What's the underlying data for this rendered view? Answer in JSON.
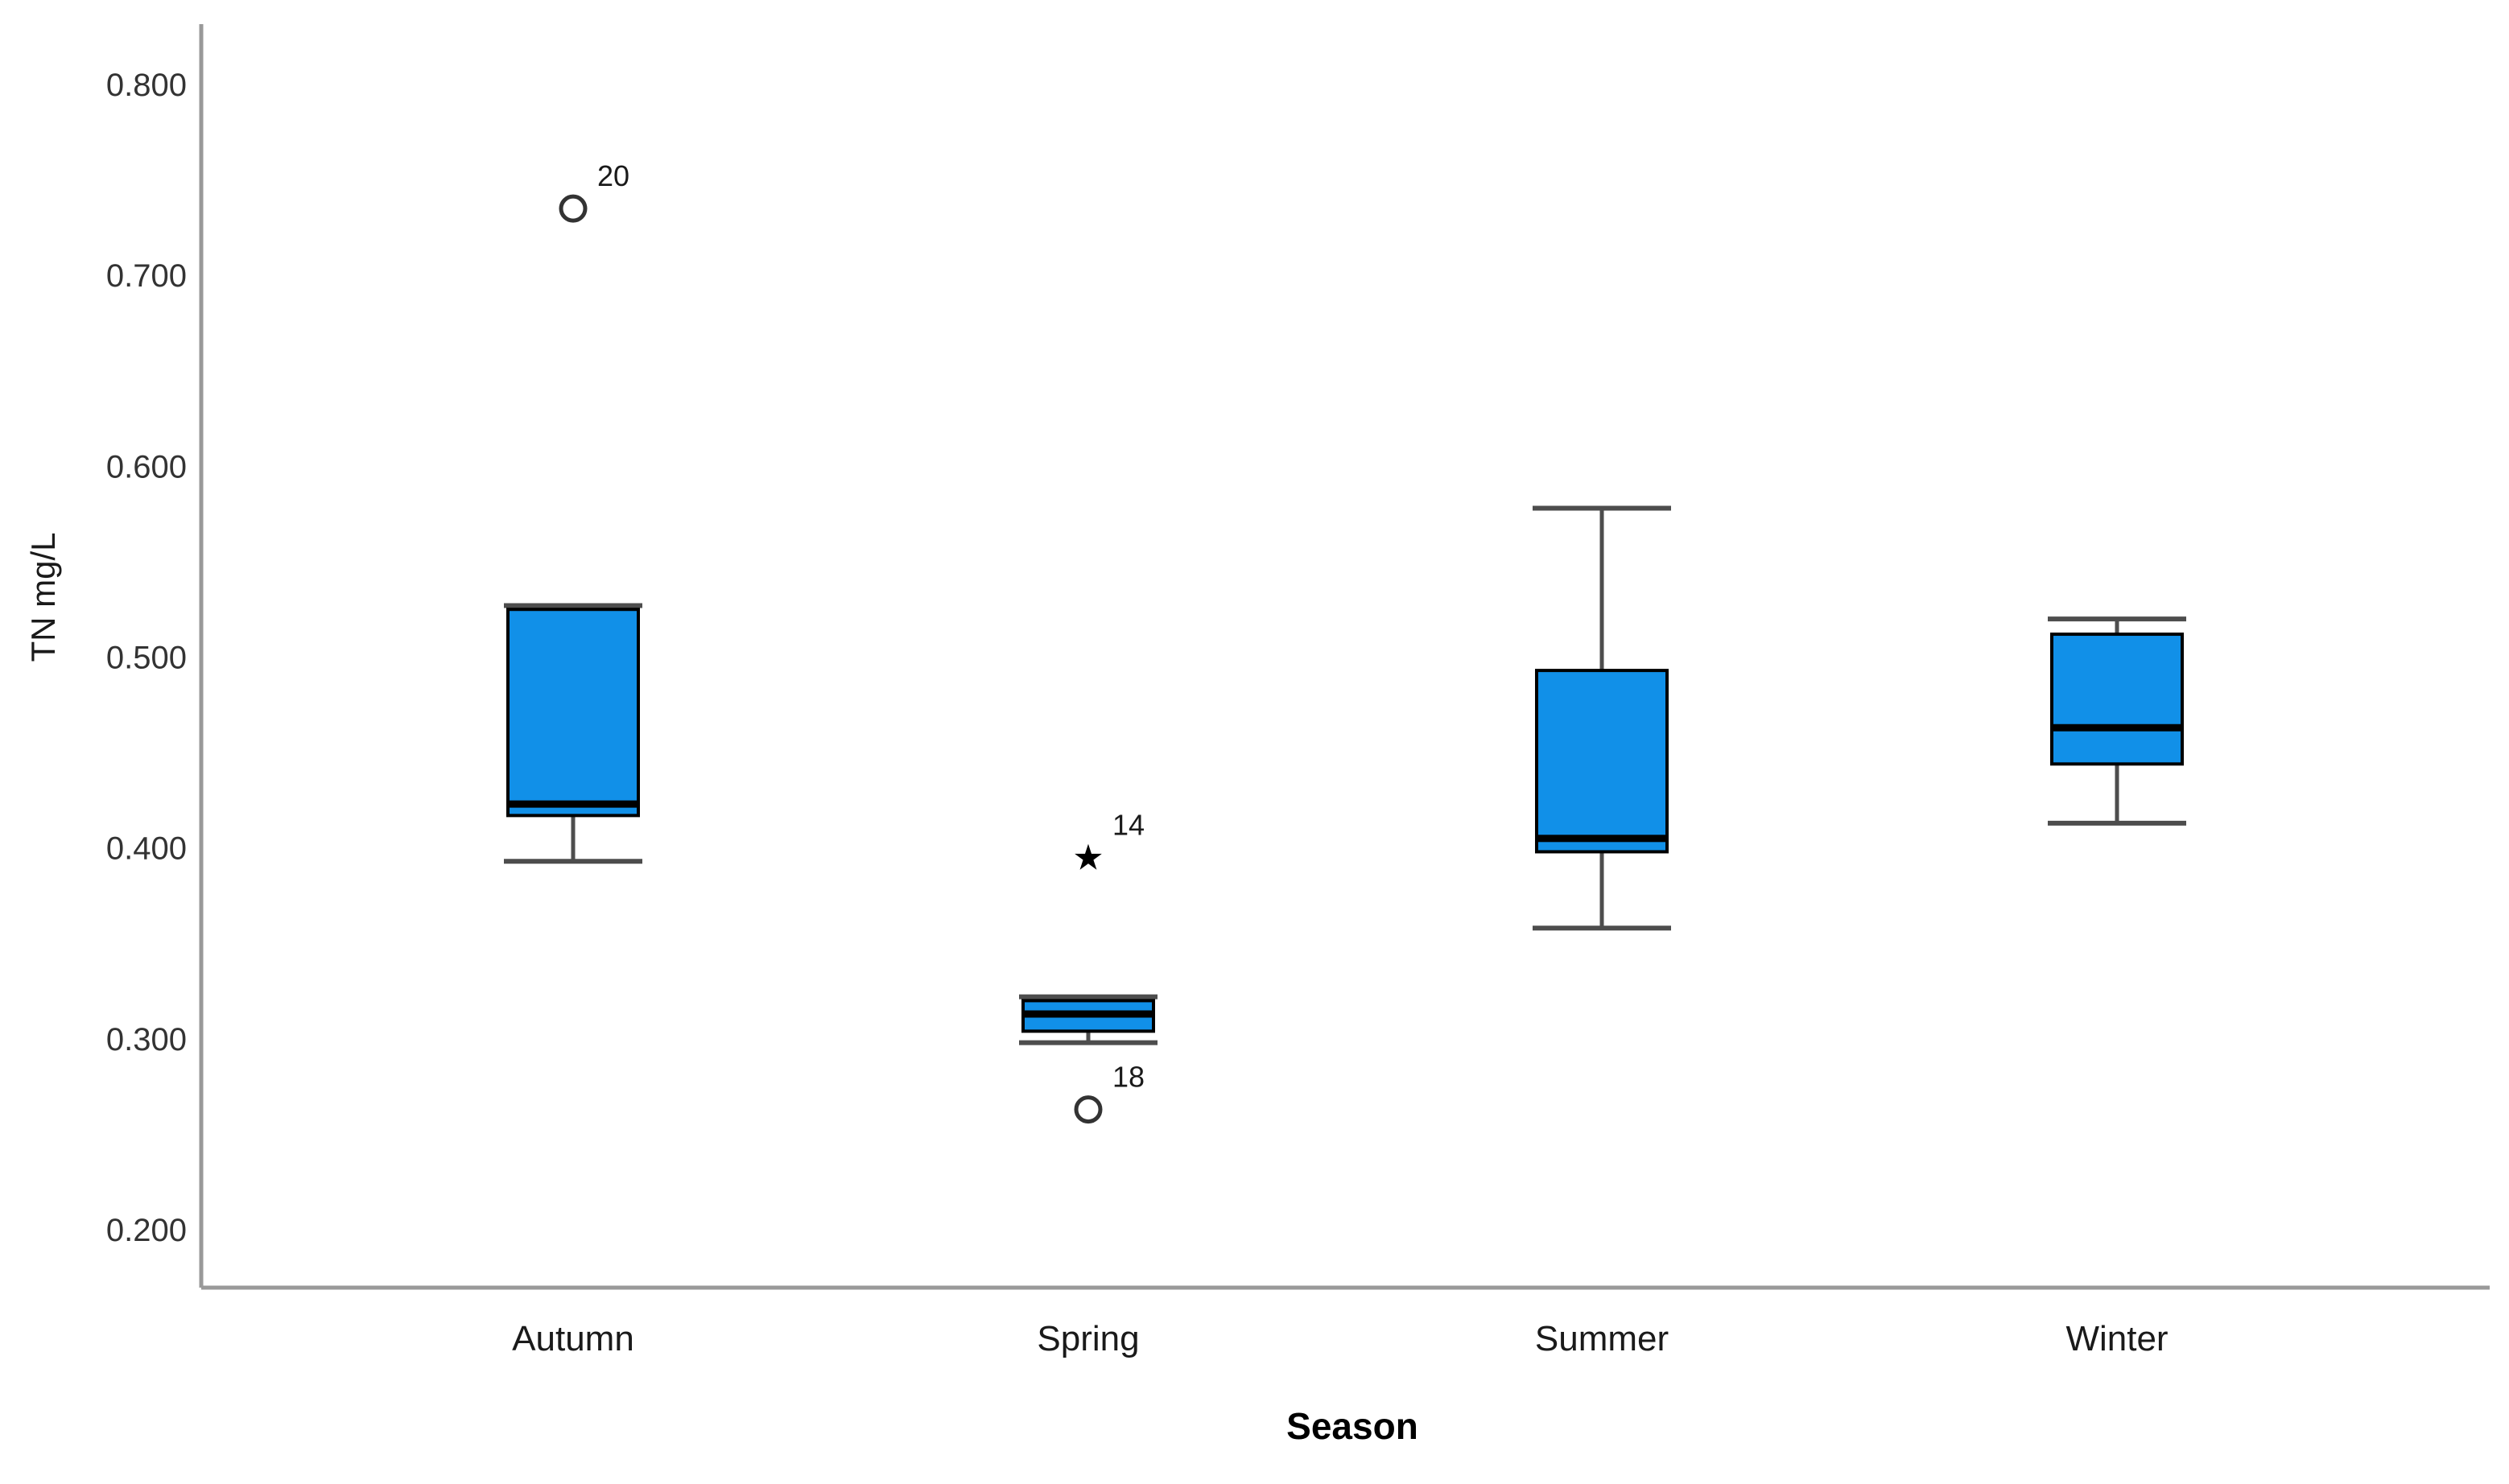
{
  "chart_data": {
    "type": "boxplot",
    "title": "",
    "xlabel": "Season",
    "ylabel": "TN  mg/L",
    "categories": [
      "Autumn",
      "Spring",
      "Summer",
      "Winter"
    ],
    "y_ticks": [
      "0.800",
      "0.700",
      "0.600",
      "0.500",
      "0.400",
      "0.300",
      "0.200"
    ],
    "y_tick_values": [
      0.8,
      0.7,
      0.6,
      0.5,
      0.4,
      0.3,
      0.2
    ],
    "ylim_visible": [
      0.17,
      0.832
    ],
    "grid": "off",
    "legend": "none",
    "series": [
      {
        "name": "Autumn",
        "q1": 0.417,
        "median": 0.423,
        "q3": 0.525,
        "whisker_low": 0.393,
        "whisker_high": 0.527,
        "outliers": [
          {
            "value": 0.735,
            "label": "20",
            "marker": "circle"
          }
        ]
      },
      {
        "name": "Spring",
        "q1": 0.304,
        "median": 0.313,
        "q3": 0.32,
        "whisker_low": 0.298,
        "whisker_high": 0.322,
        "outliers": [
          {
            "value": 0.395,
            "label": "14",
            "marker": "star"
          },
          {
            "value": 0.263,
            "label": "18",
            "marker": "circle"
          }
        ]
      },
      {
        "name": "Summer",
        "q1": 0.398,
        "median": 0.405,
        "q3": 0.493,
        "whisker_low": 0.358,
        "whisker_high": 0.578,
        "outliers": []
      },
      {
        "name": "Winter",
        "q1": 0.444,
        "median": 0.463,
        "q3": 0.512,
        "whisker_low": 0.413,
        "whisker_high": 0.52,
        "outliers": []
      }
    ],
    "colors": {
      "box_fill": "#1190E8",
      "box_border": "#000000",
      "median": "#000000",
      "whisker": "#4D4D4D",
      "axis": "#999999",
      "tick_text": "#333333",
      "label_text": "#1A1A1A",
      "outlier_stroke": "#333333"
    }
  }
}
